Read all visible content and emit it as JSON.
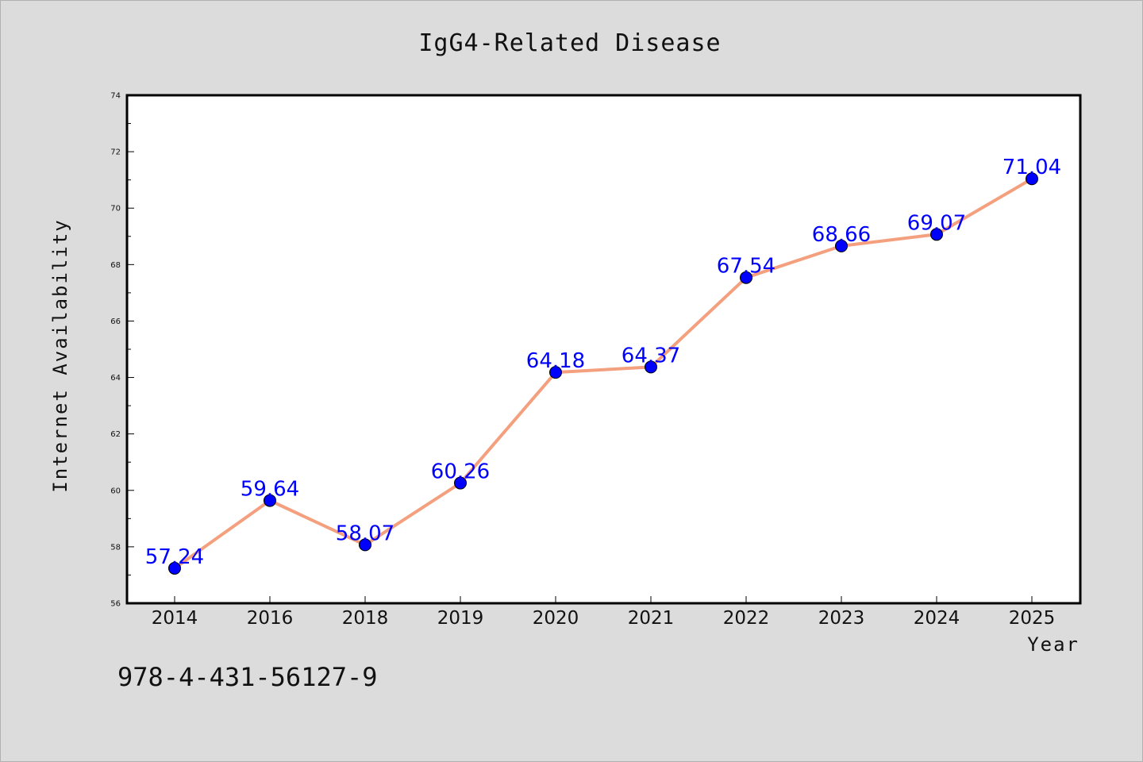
{
  "chart_data": {
    "type": "line",
    "title": "IgG4-Related Disease",
    "xlabel": "Year",
    "ylabel": "Internet Availability",
    "categories": [
      "2014",
      "2016",
      "2018",
      "2019",
      "2020",
      "2021",
      "2022",
      "2023",
      "2024",
      "2025"
    ],
    "values": [
      57.24,
      59.64,
      58.07,
      60.26,
      64.18,
      64.37,
      67.54,
      68.66,
      69.07,
      71.04
    ],
    "data_labels": [
      "57.24",
      "59.64",
      "58.07",
      "60.26",
      "64.18",
      "64.37",
      "67.54",
      "68.66",
      "69.07",
      "71.04"
    ],
    "ylim": [
      56,
      74
    ],
    "yticks": [
      "56",
      "58",
      "60",
      "62",
      "64",
      "66",
      "68",
      "70",
      "72",
      "74"
    ],
    "grid": false,
    "legend": "none",
    "colors": {
      "line": "#f4a07e",
      "marker": "#0000ff",
      "label": "#0000ff",
      "background": "#dcdcdc",
      "plot_area": "#ffffff"
    }
  },
  "footer": {
    "isbn": "978-4-431-56127-9"
  }
}
